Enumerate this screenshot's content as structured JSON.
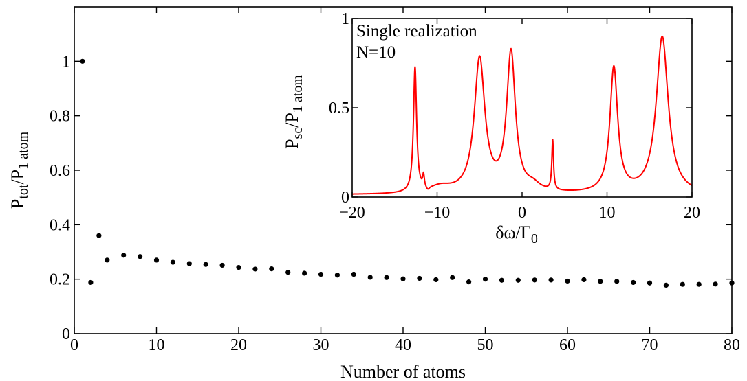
{
  "chart_data": [
    {
      "type": "scatter",
      "title": "",
      "xlabel": "Number of atoms",
      "ylabel": "P_tot/P_1 atom",
      "ylabel_parts": {
        "main1": "P",
        "sub1": "tot",
        "main2": "/P",
        "sub2": "1 atom"
      },
      "xlim": [
        0,
        80
      ],
      "ylim": [
        0,
        1.2
      ],
      "xticks": [
        0,
        10,
        20,
        30,
        40,
        50,
        60,
        70,
        80
      ],
      "xtick_labels": [
        "0",
        "10",
        "20",
        "30",
        "40",
        "50",
        "60",
        "70",
        "80"
      ],
      "yticks": [
        0,
        0.2,
        0.4,
        0.6,
        0.8,
        1.0
      ],
      "ytick_labels": [
        "0",
        "0.2",
        "0.4",
        "0.6",
        "0.8",
        "1"
      ],
      "marker_color": "#000000",
      "grid": false,
      "x": [
        1,
        2,
        3,
        4,
        6,
        8,
        10,
        12,
        14,
        16,
        18,
        20,
        22,
        24,
        26,
        28,
        30,
        32,
        34,
        36,
        38,
        40,
        42,
        44,
        46,
        48,
        50,
        52,
        54,
        56,
        58,
        60,
        62,
        64,
        66,
        68,
        70,
        72,
        74,
        76,
        78,
        80
      ],
      "y": [
        1.0,
        0.188,
        0.36,
        0.27,
        0.288,
        0.283,
        0.27,
        0.262,
        0.257,
        0.254,
        0.251,
        0.243,
        0.237,
        0.238,
        0.225,
        0.222,
        0.218,
        0.215,
        0.218,
        0.207,
        0.206,
        0.201,
        0.203,
        0.198,
        0.206,
        0.19,
        0.2,
        0.196,
        0.196,
        0.197,
        0.197,
        0.193,
        0.198,
        0.192,
        0.192,
        0.188,
        0.186,
        0.178,
        0.181,
        0.181,
        0.182,
        0.186
      ]
    },
    {
      "type": "line",
      "title": "",
      "annotation_lines": [
        "Single realization",
        "N=10"
      ],
      "xlabel": "δω/Γ_0",
      "xlabel_parts": {
        "main": "δω/Γ",
        "sub": "0"
      },
      "ylabel": "P_sc/P_1 atom",
      "ylabel_parts": {
        "main1": "P",
        "sub1": "sc",
        "main2": "/P",
        "sub2": "1 atom"
      },
      "xlim": [
        -20,
        20
      ],
      "ylim": [
        0,
        1
      ],
      "xticks": [
        -20,
        -10,
        0,
        10,
        20
      ],
      "xtick_labels": [
        "−20",
        "−10",
        "0",
        "10",
        "20"
      ],
      "yticks": [
        0,
        0.5,
        1
      ],
      "ytick_labels": [
        "0",
        "0.5",
        "1"
      ],
      "line_color": "#ff0000",
      "grid": false,
      "peaks": [
        {
          "x": -12.6,
          "height": 0.7,
          "width": 0.22
        },
        {
          "x": -11.6,
          "height": 0.07,
          "width": 0.12
        },
        {
          "x": -5.0,
          "height": 0.75,
          "width": 0.75
        },
        {
          "x": -1.3,
          "height": 0.78,
          "width": 0.62
        },
        {
          "x": 3.6,
          "height": 0.28,
          "width": 0.12
        },
        {
          "x": 10.8,
          "height": 0.7,
          "width": 0.55
        },
        {
          "x": 16.5,
          "height": 0.88,
          "width": 0.85
        }
      ],
      "humps": [
        {
          "x": -9.6,
          "height": 0.035,
          "width": 1.6
        },
        {
          "x": 1.3,
          "height": 0.035,
          "width": 1.0
        }
      ],
      "baseline": 0.012,
      "dips": [
        {
          "x": -11.1,
          "depth": 0.02,
          "width": 0.25
        }
      ]
    }
  ]
}
